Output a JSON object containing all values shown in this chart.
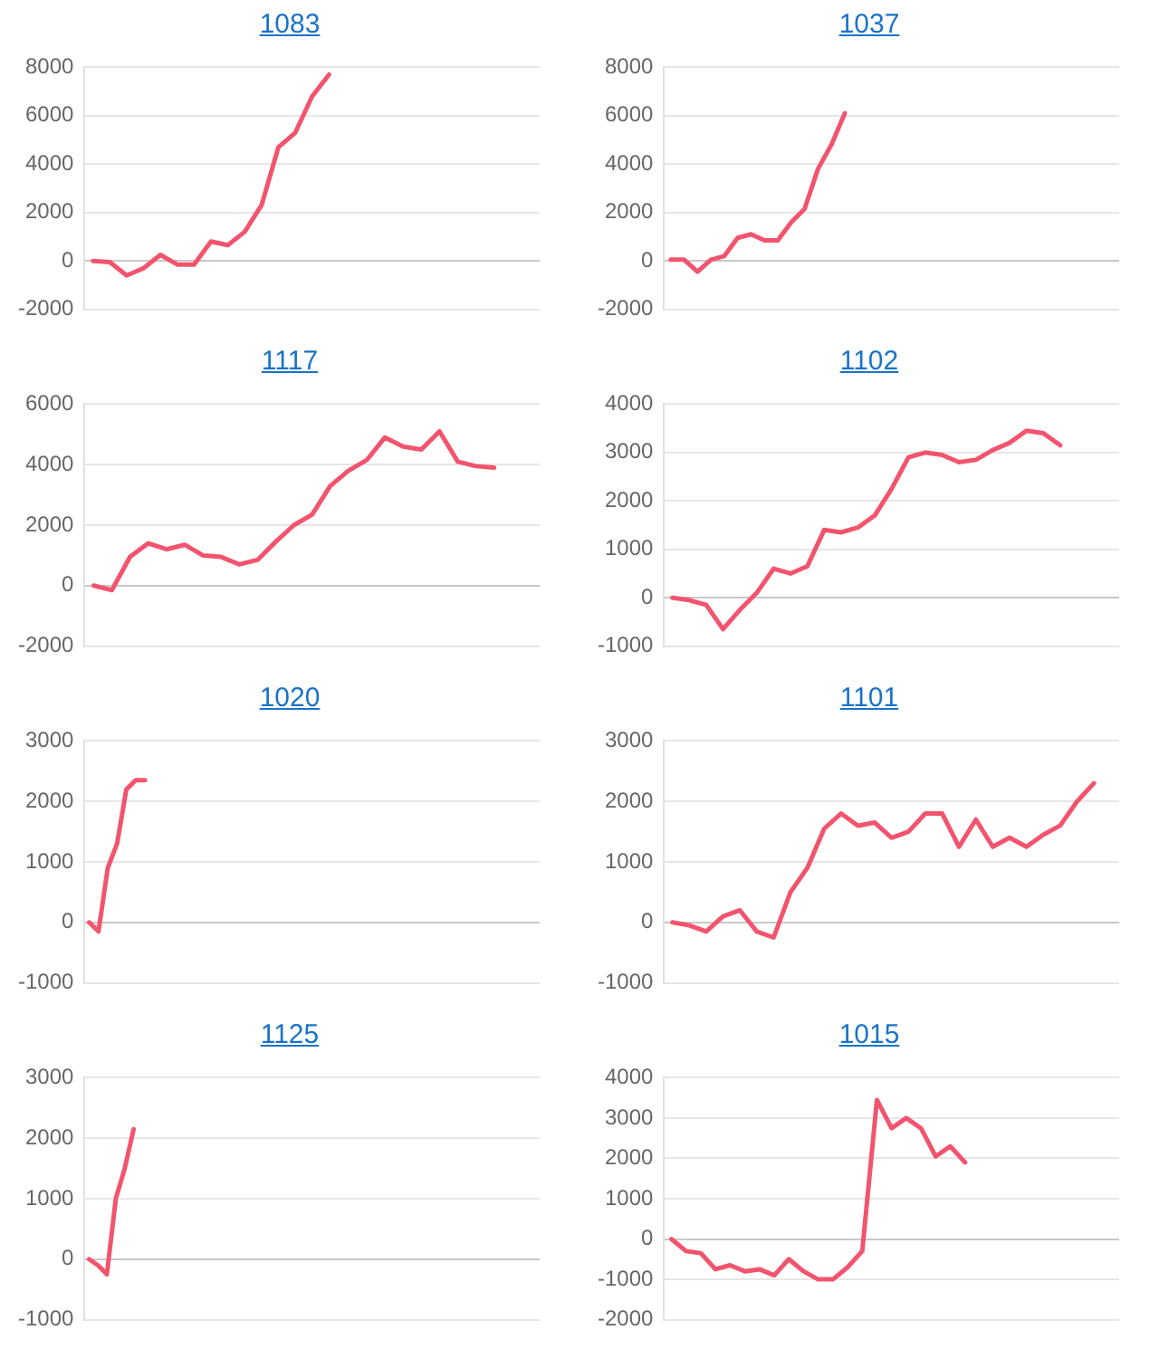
{
  "chart_data": [
    {
      "type": "line",
      "title": "1083",
      "categories": [
        null,
        null,
        null,
        null,
        null,
        null,
        null,
        null,
        null,
        null,
        null,
        null,
        null,
        null,
        null,
        null,
        null,
        null,
        null,
        null,
        null,
        null,
        null,
        null,
        null,
        null,
        null
      ],
      "series": [
        {
          "color": "#f2546e",
          "values": [
            0,
            -50,
            -600,
            -300,
            250,
            -150,
            -150,
            800,
            650,
            1200,
            2300,
            4700,
            5300,
            6800,
            7700,
            null,
            null,
            null,
            null,
            null,
            null,
            null,
            null,
            null,
            null,
            null,
            null
          ]
        }
      ],
      "ylim": [
        -2000,
        8000
      ],
      "yticks": [
        -2000,
        0,
        2000,
        4000,
        6000,
        8000
      ],
      "grid": "y",
      "tick_labels": "y",
      "marker": "none",
      "legend": false
    },
    {
      "type": "line",
      "title": "1037",
      "categories": [
        null,
        null,
        null,
        null,
        null,
        null,
        null,
        null,
        null,
        null,
        null,
        null,
        null,
        null,
        null,
        null,
        null,
        null,
        null,
        null,
        null,
        null,
        null,
        null,
        null,
        null,
        null,
        null,
        null,
        null,
        null,
        null,
        null,
        null
      ],
      "series": [
        {
          "color": "#f2546e",
          "values": [
            50,
            50,
            -450,
            50,
            200,
            950,
            1100,
            850,
            850,
            1600,
            2150,
            3800,
            4800,
            6100,
            null,
            null,
            null,
            null,
            null,
            null,
            null,
            null,
            null,
            null,
            null,
            null,
            null,
            null,
            null,
            null,
            null,
            null,
            null,
            null
          ]
        }
      ],
      "ylim": [
        -2000,
        8000
      ],
      "yticks": [
        -2000,
        0,
        2000,
        4000,
        6000,
        8000
      ],
      "grid": "y",
      "tick_labels": "y",
      "marker": "none",
      "legend": false
    },
    {
      "type": "line",
      "title": "1117",
      "categories": [
        null,
        null,
        null,
        null,
        null,
        null,
        null,
        null,
        null,
        null,
        null,
        null,
        null,
        null,
        null,
        null,
        null,
        null,
        null,
        null,
        null,
        null,
        null,
        null,
        null
      ],
      "series": [
        {
          "color": "#f2546e",
          "values": [
            0,
            -150,
            950,
            1400,
            1200,
            1350,
            1000,
            950,
            700,
            850,
            1450,
            2000,
            2350,
            3300,
            3800,
            4150,
            4900,
            4600,
            4500,
            5100,
            4100,
            3950,
            3900,
            null,
            null
          ]
        }
      ],
      "ylim": [
        -2000,
        6000
      ],
      "yticks": [
        -2000,
        0,
        2000,
        4000,
        6000
      ],
      "grid": "y",
      "tick_labels": "y",
      "marker": "none",
      "legend": false
    },
    {
      "type": "line",
      "title": "1102",
      "categories": [
        null,
        null,
        null,
        null,
        null,
        null,
        null,
        null,
        null,
        null,
        null,
        null,
        null,
        null,
        null,
        null,
        null,
        null,
        null,
        null,
        null,
        null,
        null,
        null,
        null,
        null,
        null
      ],
      "series": [
        {
          "color": "#f2546e",
          "values": [
            0,
            -50,
            -150,
            -650,
            -250,
            100,
            600,
            500,
            650,
            1400,
            1350,
            1450,
            1700,
            2250,
            2900,
            3000,
            2950,
            2800,
            2850,
            3050,
            3200,
            3450,
            3400,
            3150,
            null,
            null,
            null
          ]
        }
      ],
      "ylim": [
        -1000,
        4000
      ],
      "yticks": [
        -1000,
        0,
        1000,
        2000,
        3000,
        4000
      ],
      "grid": "y",
      "tick_labels": "y",
      "marker": "none",
      "legend": false
    },
    {
      "type": "line",
      "title": "1020",
      "categories": [
        null,
        null,
        null,
        null,
        null,
        null,
        null,
        null,
        null,
        null,
        null,
        null,
        null,
        null,
        null,
        null,
        null,
        null,
        null,
        null,
        null,
        null,
        null,
        null,
        null,
        null,
        null,
        null,
        null,
        null,
        null,
        null,
        null,
        null,
        null,
        null,
        null,
        null,
        null,
        null,
        null,
        null,
        null,
        null,
        null,
        null,
        null,
        null,
        null
      ],
      "series": [
        {
          "color": "#f2546e",
          "values": [
            0,
            -150,
            900,
            1300,
            2200,
            2350,
            2350,
            null,
            null,
            null,
            null,
            null,
            null,
            null,
            null,
            null,
            null,
            null,
            null,
            null,
            null,
            null,
            null,
            null,
            null,
            null,
            null,
            null,
            null,
            null,
            null,
            null,
            null,
            null,
            null,
            null,
            null,
            null,
            null,
            null,
            null,
            null,
            null,
            null,
            null,
            null,
            null,
            null,
            null
          ]
        }
      ],
      "ylim": [
        -1000,
        3000
      ],
      "yticks": [
        -1000,
        0,
        1000,
        2000,
        3000
      ],
      "grid": "y",
      "tick_labels": "y",
      "marker": "none",
      "legend": false
    },
    {
      "type": "line",
      "title": "1101",
      "categories": [
        null,
        null,
        null,
        null,
        null,
        null,
        null,
        null,
        null,
        null,
        null,
        null,
        null,
        null,
        null,
        null,
        null,
        null,
        null,
        null,
        null,
        null,
        null,
        null,
        null,
        null,
        null
      ],
      "series": [
        {
          "color": "#f2546e",
          "values": [
            0,
            -50,
            -150,
            100,
            200,
            -150,
            -250,
            500,
            900,
            1550,
            1800,
            1600,
            1650,
            1400,
            1500,
            1800,
            1800,
            1250,
            1700,
            1250,
            1400,
            1250,
            1450,
            1600,
            2000,
            2300,
            null
          ]
        }
      ],
      "ylim": [
        -1000,
        3000
      ],
      "yticks": [
        -1000,
        0,
        1000,
        2000,
        3000
      ],
      "grid": "y",
      "tick_labels": "y",
      "marker": "none",
      "legend": false
    },
    {
      "type": "line",
      "title": "1125",
      "categories": [
        null,
        null,
        null,
        null,
        null,
        null,
        null,
        null,
        null,
        null,
        null,
        null,
        null,
        null,
        null,
        null,
        null,
        null,
        null,
        null,
        null,
        null,
        null,
        null,
        null,
        null,
        null,
        null,
        null,
        null,
        null,
        null,
        null,
        null,
        null,
        null,
        null,
        null,
        null,
        null,
        null,
        null,
        null,
        null,
        null,
        null,
        null,
        null,
        null,
        null,
        null
      ],
      "series": [
        {
          "color": "#f2546e",
          "values": [
            0,
            -100,
            -250,
            1000,
            1500,
            2150,
            null,
            null,
            null,
            null,
            null,
            null,
            null,
            null,
            null,
            null,
            null,
            null,
            null,
            null,
            null,
            null,
            null,
            null,
            null,
            null,
            null,
            null,
            null,
            null,
            null,
            null,
            null,
            null,
            null,
            null,
            null,
            null,
            null,
            null,
            null,
            null,
            null,
            null,
            null,
            null,
            null,
            null,
            null,
            null,
            null
          ]
        }
      ],
      "ylim": [
        -1000,
        3000
      ],
      "yticks": [
        -1000,
        0,
        1000,
        2000,
        3000
      ],
      "grid": "y",
      "tick_labels": "y",
      "marker": "none",
      "legend": false
    },
    {
      "type": "line",
      "title": "1015",
      "categories": [
        null,
        null,
        null,
        null,
        null,
        null,
        null,
        null,
        null,
        null,
        null,
        null,
        null,
        null,
        null,
        null,
        null,
        null,
        null,
        null,
        null,
        null,
        null,
        null,
        null,
        null,
        null,
        null,
        null,
        null,
        null
      ],
      "series": [
        {
          "color": "#f2546e",
          "values": [
            0,
            -300,
            -350,
            -750,
            -650,
            -800,
            -750,
            -900,
            -500,
            -800,
            -1000,
            -1000,
            -700,
            -300,
            3450,
            2750,
            3000,
            2750,
            2050,
            2300,
            1900,
            null,
            null,
            null,
            null,
            null,
            null,
            null,
            null,
            null,
            null
          ]
        }
      ],
      "ylim": [
        -2000,
        4000
      ],
      "yticks": [
        -2000,
        -1000,
        0,
        1000,
        2000,
        3000,
        4000
      ],
      "grid": "y",
      "tick_labels": "y",
      "marker": "none",
      "legend": false
    }
  ]
}
